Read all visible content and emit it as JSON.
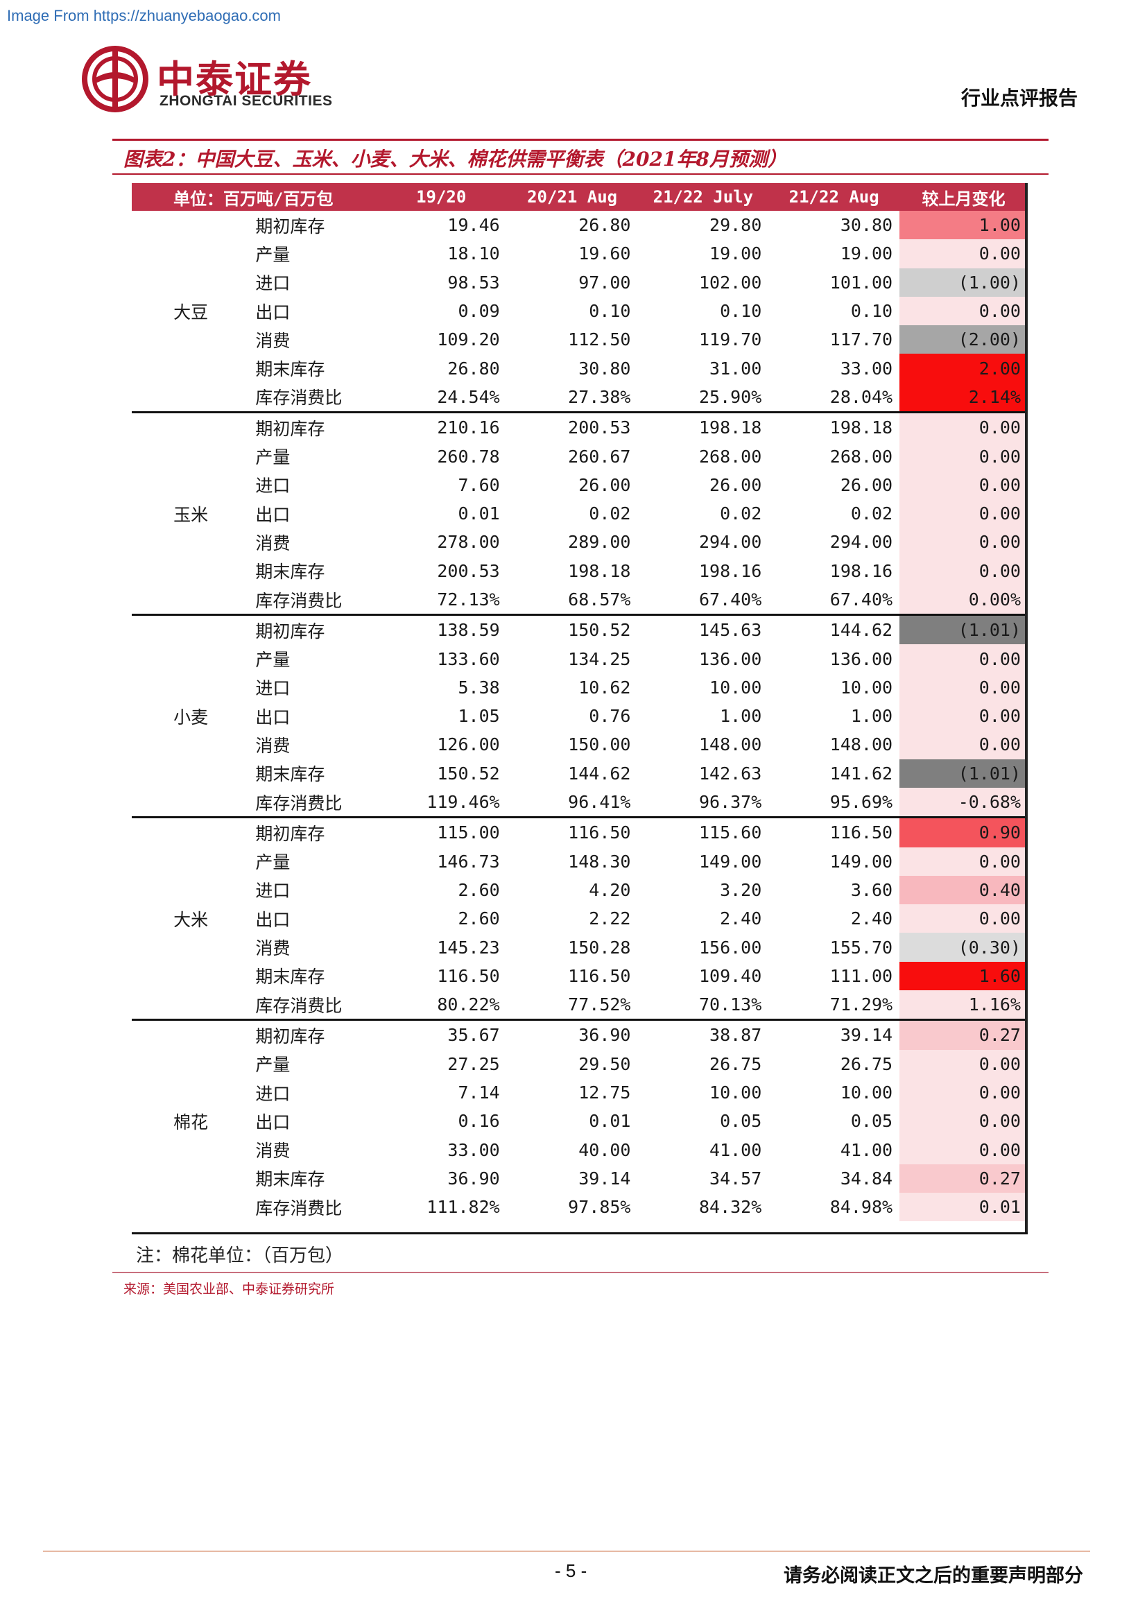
{
  "watermark": "Image From https://zhuanyebaogao.com",
  "brand": {
    "name_cn": "中泰证券",
    "name_en": "ZHONGTAI SECURITIES",
    "color": "#b3182d"
  },
  "report_type": "行业点评报告",
  "figure_title": "图表2：中国大豆、玉米、小麦、大米、棉花供需平衡表（2021年8月预测）",
  "table": {
    "header_bg": "#c0324a",
    "headers": {
      "unit": "单位：百万吨/百万包",
      "c1": "19/20",
      "c2": "20/21 Aug",
      "c3": "21/22 July",
      "c4": "21/22 Aug",
      "c5": "较上月变化"
    },
    "groups": [
      {
        "name": "大豆",
        "rows": [
          {
            "item": "期初库存",
            "v": [
              "19.46",
              "26.80",
              "29.80",
              "30.80"
            ],
            "chg": "1.00",
            "bg": "#f47c85",
            "neg": false
          },
          {
            "item": "产量",
            "v": [
              "18.10",
              "19.60",
              "19.00",
              "19.00"
            ],
            "chg": "0.00",
            "bg": "#fbe3e5",
            "neg": false
          },
          {
            "item": "进口",
            "v": [
              "98.53",
              "97.00",
              "102.00",
              "101.00"
            ],
            "chg": "(1.00)",
            "bg": "#cfcfcf",
            "neg": true
          },
          {
            "item": "出口",
            "v": [
              "0.09",
              "0.10",
              "0.10",
              "0.10"
            ],
            "chg": "0.00",
            "bg": "#fbe3e5",
            "neg": false
          },
          {
            "item": "消费",
            "v": [
              "109.20",
              "112.50",
              "119.70",
              "117.70"
            ],
            "chg": "(2.00)",
            "bg": "#a6a6a6",
            "neg": true
          },
          {
            "item": "期末库存",
            "v": [
              "26.80",
              "30.80",
              "31.00",
              "33.00"
            ],
            "chg": "2.00",
            "bg": "#f80d0d",
            "neg": false
          },
          {
            "item": "库存消费比",
            "v": [
              "24.54%",
              "27.38%",
              "25.90%",
              "28.04%"
            ],
            "chg": "2.14%",
            "bg": "#f80d0d",
            "neg": false
          }
        ]
      },
      {
        "name": "玉米",
        "rows": [
          {
            "item": "期初库存",
            "v": [
              "210.16",
              "200.53",
              "198.18",
              "198.18"
            ],
            "chg": "0.00",
            "bg": "#fbe3e5",
            "neg": false
          },
          {
            "item": "产量",
            "v": [
              "260.78",
              "260.67",
              "268.00",
              "268.00"
            ],
            "chg": "0.00",
            "bg": "#fbe3e5",
            "neg": false
          },
          {
            "item": "进口",
            "v": [
              "7.60",
              "26.00",
              "26.00",
              "26.00"
            ],
            "chg": "0.00",
            "bg": "#fbe3e5",
            "neg": false
          },
          {
            "item": "出口",
            "v": [
              "0.01",
              "0.02",
              "0.02",
              "0.02"
            ],
            "chg": "0.00",
            "bg": "#fbe3e5",
            "neg": false
          },
          {
            "item": "消费",
            "v": [
              "278.00",
              "289.00",
              "294.00",
              "294.00"
            ],
            "chg": "0.00",
            "bg": "#fbe3e5",
            "neg": false
          },
          {
            "item": "期末库存",
            "v": [
              "200.53",
              "198.18",
              "198.16",
              "198.16"
            ],
            "chg": "0.00",
            "bg": "#fbe3e5",
            "neg": false
          },
          {
            "item": "库存消费比",
            "v": [
              "72.13%",
              "68.57%",
              "67.40%",
              "67.40%"
            ],
            "chg": "0.00%",
            "bg": "#fbe3e5",
            "neg": false
          }
        ]
      },
      {
        "name": "小麦",
        "rows": [
          {
            "item": "期初库存",
            "v": [
              "138.59",
              "150.52",
              "145.63",
              "144.62"
            ],
            "chg": "(1.01)",
            "bg": "#7f7f7f",
            "neg": true
          },
          {
            "item": "产量",
            "v": [
              "133.60",
              "134.25",
              "136.00",
              "136.00"
            ],
            "chg": "0.00",
            "bg": "#fbe3e5",
            "neg": false
          },
          {
            "item": "进口",
            "v": [
              "5.38",
              "10.62",
              "10.00",
              "10.00"
            ],
            "chg": "0.00",
            "bg": "#fbe3e5",
            "neg": false
          },
          {
            "item": "出口",
            "v": [
              "1.05",
              "0.76",
              "1.00",
              "1.00"
            ],
            "chg": "0.00",
            "bg": "#fbe3e5",
            "neg": false
          },
          {
            "item": "消费",
            "v": [
              "126.00",
              "150.00",
              "148.00",
              "148.00"
            ],
            "chg": "0.00",
            "bg": "#fbe3e5",
            "neg": false
          },
          {
            "item": "期末库存",
            "v": [
              "150.52",
              "144.62",
              "142.63",
              "141.62"
            ],
            "chg": "(1.01)",
            "bg": "#7f7f7f",
            "neg": true
          },
          {
            "item": "库存消费比",
            "v": [
              "119.46%",
              "96.41%",
              "96.37%",
              "95.69%"
            ],
            "chg": "-0.68%",
            "bg": "#fbe3e5",
            "neg": false
          }
        ]
      },
      {
        "name": "大米",
        "rows": [
          {
            "item": "期初库存",
            "v": [
              "115.00",
              "116.50",
              "115.60",
              "116.50"
            ],
            "chg": "0.90",
            "bg": "#f4545c",
            "neg": false
          },
          {
            "item": "产量",
            "v": [
              "146.73",
              "148.30",
              "149.00",
              "149.00"
            ],
            "chg": "0.00",
            "bg": "#fbe3e5",
            "neg": false
          },
          {
            "item": "进口",
            "v": [
              "2.60",
              "4.20",
              "3.20",
              "3.60"
            ],
            "chg": "0.40",
            "bg": "#f8b8be",
            "neg": false
          },
          {
            "item": "出口",
            "v": [
              "2.60",
              "2.22",
              "2.40",
              "2.40"
            ],
            "chg": "0.00",
            "bg": "#fbe3e5",
            "neg": false
          },
          {
            "item": "消费",
            "v": [
              "145.23",
              "150.28",
              "156.00",
              "155.70"
            ],
            "chg": "(0.30)",
            "bg": "#dcdcdc",
            "neg": true
          },
          {
            "item": "期末库存",
            "v": [
              "116.50",
              "116.50",
              "109.40",
              "111.00"
            ],
            "chg": "1.60",
            "bg": "#f80d0d",
            "neg": false
          },
          {
            "item": "库存消费比",
            "v": [
              "80.22%",
              "77.52%",
              "70.13%",
              "71.29%"
            ],
            "chg": "1.16%",
            "bg": "#fbe3e5",
            "neg": false
          }
        ]
      },
      {
        "name": "棉花",
        "rows": [
          {
            "item": "期初库存",
            "v": [
              "35.67",
              "36.90",
              "38.87",
              "39.14"
            ],
            "chg": "0.27",
            "bg": "#f9c9cd",
            "neg": false
          },
          {
            "item": "产量",
            "v": [
              "27.25",
              "29.50",
              "26.75",
              "26.75"
            ],
            "chg": "0.00",
            "bg": "#fbe3e5",
            "neg": false
          },
          {
            "item": "进口",
            "v": [
              "7.14",
              "12.75",
              "10.00",
              "10.00"
            ],
            "chg": "0.00",
            "bg": "#fbe3e5",
            "neg": false
          },
          {
            "item": "出口",
            "v": [
              "0.16",
              "0.01",
              "0.05",
              "0.05"
            ],
            "chg": "0.00",
            "bg": "#fbe3e5",
            "neg": false
          },
          {
            "item": "消费",
            "v": [
              "33.00",
              "40.00",
              "41.00",
              "41.00"
            ],
            "chg": "0.00",
            "bg": "#fbe3e5",
            "neg": false
          },
          {
            "item": "期末库存",
            "v": [
              "36.90",
              "39.14",
              "34.57",
              "34.84"
            ],
            "chg": "0.27",
            "bg": "#f9c9cd",
            "neg": false
          },
          {
            "item": "库存消费比",
            "v": [
              "111.82%",
              "97.85%",
              "84.32%",
              "84.98%"
            ],
            "chg": "0.01",
            "bg": "#fbe3e5",
            "neg": false
          }
        ]
      }
    ]
  },
  "note": "注：棉花单位：（百万包）",
  "source": "来源：美国农业部、中泰证券研究所",
  "page_number": "- 5 -",
  "disclaimer": "请务必阅读正文之后的重要声明部分"
}
